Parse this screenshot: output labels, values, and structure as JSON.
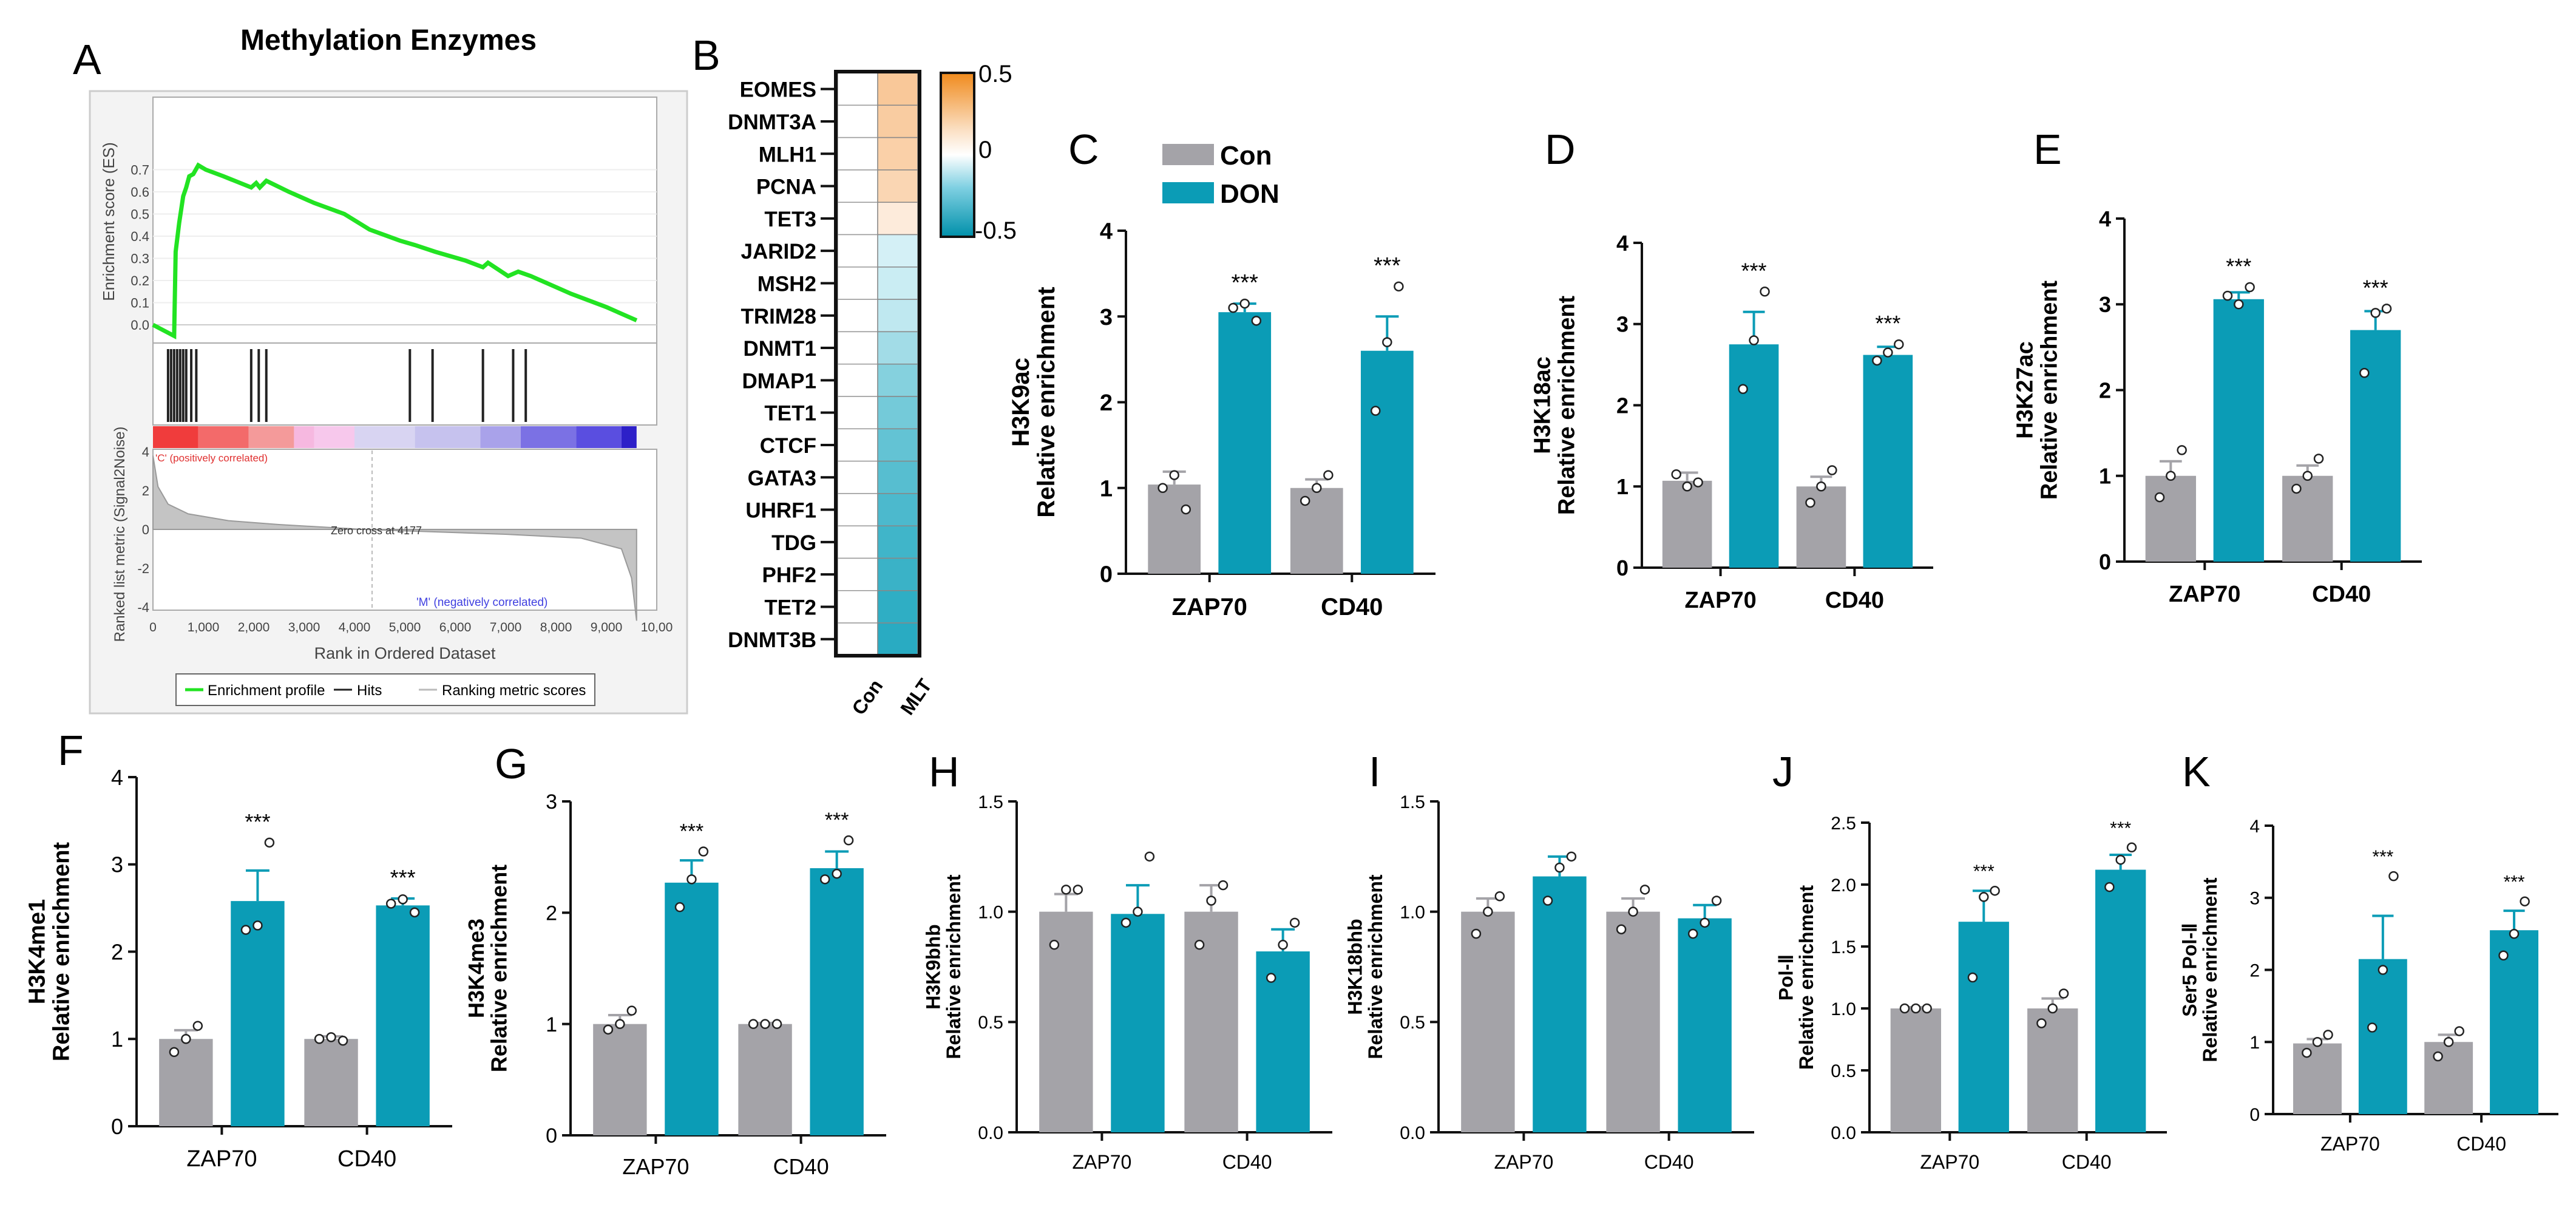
{
  "colors": {
    "con": "#a4a3a8",
    "don": "#0b9cb6",
    "gsea_line": "#22e322",
    "axis": "#111111"
  },
  "panel_letters": {
    "A": "A",
    "B": "B",
    "C": "C",
    "D": "D",
    "E": "E",
    "F": "F",
    "G": "G",
    "H": "H",
    "I": "I",
    "J": "J",
    "K": "K"
  },
  "legend": {
    "con": "Con",
    "don": "DON"
  },
  "gsea": {
    "title": "Methylation Enzymes",
    "es_label": "Enrichment score (ES)",
    "rank_label": "Ranked list metric (Signal2Noise)",
    "xlabel": "Rank in Ordered Dataset",
    "pos_note": "'C' (positively correlated)",
    "neg_note": "'M' (negatively correlated)",
    "zero_cross": "Zero cross at 4177",
    "es_ticks": [
      "0.7",
      "0.6",
      "0.5",
      "0.4",
      "0.3",
      "0.2",
      "0.1",
      "0.0"
    ],
    "rank_ticks": [
      "4",
      "2",
      "0",
      "-2",
      "-4"
    ],
    "x_ticks": [
      "0",
      "1,000",
      "2,000",
      "3,000",
      "4,000",
      "5,000",
      "6,000",
      "7,000",
      "8,000",
      "9,000",
      "10,00"
    ],
    "legend_items": [
      "Enrichment profile",
      "Hits",
      "Ranking metric scores"
    ],
    "es_points": [
      [
        0,
        0.0
      ],
      [
        420,
        -0.05
      ],
      [
        450,
        0.33
      ],
      [
        520,
        0.46
      ],
      [
        600,
        0.58
      ],
      [
        660,
        0.62
      ],
      [
        720,
        0.67
      ],
      [
        800,
        0.68
      ],
      [
        900,
        0.72
      ],
      [
        1050,
        0.7
      ],
      [
        1400,
        0.67
      ],
      [
        1950,
        0.62
      ],
      [
        2050,
        0.64
      ],
      [
        2120,
        0.62
      ],
      [
        2250,
        0.65
      ],
      [
        2700,
        0.6
      ],
      [
        3200,
        0.55
      ],
      [
        3800,
        0.5
      ],
      [
        4300,
        0.43
      ],
      [
        4900,
        0.38
      ],
      [
        5200,
        0.36
      ],
      [
        5600,
        0.33
      ],
      [
        6200,
        0.29
      ],
      [
        6550,
        0.26
      ],
      [
        6650,
        0.28
      ],
      [
        7050,
        0.22
      ],
      [
        7250,
        0.24
      ],
      [
        7500,
        0.22
      ],
      [
        8300,
        0.14
      ],
      [
        9000,
        0.08
      ],
      [
        9600,
        0.02
      ]
    ],
    "hits": [
      300,
      360,
      420,
      480,
      540,
      600,
      660,
      760,
      860,
      1950,
      2100,
      2250,
      5100,
      5550,
      6550,
      7150,
      7400
    ]
  },
  "heatmap": {
    "genes": [
      "EOMES",
      "DNMT3A",
      "MLH1",
      "PCNA",
      "TET3",
      "JARID2",
      "MSH2",
      "TRIM28",
      "DNMT1",
      "DMAP1",
      "TET1",
      "CTCF",
      "GATA3",
      "UHRF1",
      "TDG",
      "PHF2",
      "TET2",
      "DNMT3B"
    ],
    "columns": [
      "Con",
      "MLT"
    ],
    "mlt_values": [
      0.28,
      0.26,
      0.24,
      0.21,
      0.1,
      -0.15,
      -0.18,
      -0.2,
      -0.25,
      -0.3,
      -0.33,
      -0.36,
      -0.38,
      -0.4,
      -0.42,
      -0.43,
      -0.45,
      -0.46
    ],
    "colorbar_ticks": [
      "0.5",
      "0",
      "-0.5"
    ],
    "colorbar_colors": [
      "#f08a1c",
      "#fbe0c4",
      "#ffffff",
      "#7fd0e2",
      "#0090aa"
    ]
  },
  "chart_data": [
    {
      "id": "C",
      "type": "bar",
      "ylabel_top": "H3K9ac",
      "ylabel": "Relative enrichment",
      "categories": [
        "ZAP70",
        "CD40"
      ],
      "ylim": [
        0,
        4
      ],
      "yticks": [
        "0",
        "1",
        "2",
        "3",
        "4"
      ],
      "bold_ticks": true,
      "series": [
        {
          "name": "Con",
          "values": [
            1.04,
            1.0
          ],
          "err": [
            0.15,
            0.1
          ],
          "points": [
            [
              1.0,
              1.15,
              0.75
            ],
            [
              0.85,
              1.0,
              1.15
            ]
          ]
        },
        {
          "name": "DON",
          "values": [
            3.05,
            2.6
          ],
          "err": [
            0.1,
            0.4
          ],
          "points": [
            [
              3.1,
              3.15,
              2.95
            ],
            [
              1.9,
              2.7,
              3.35
            ]
          ]
        }
      ],
      "sig": [
        "***",
        "***"
      ]
    },
    {
      "id": "D",
      "type": "bar",
      "ylabel_top": "H3K18ac",
      "ylabel": "Relative enrichment",
      "categories": [
        "ZAP70",
        "CD40"
      ],
      "ylim": [
        0,
        4
      ],
      "yticks": [
        "0",
        "1",
        "2",
        "3",
        "4"
      ],
      "bold_ticks": true,
      "series": [
        {
          "name": "Con",
          "values": [
            1.07,
            1.0
          ],
          "err": [
            0.1,
            0.12
          ],
          "points": [
            [
              1.15,
              1.0,
              1.05
            ],
            [
              0.8,
              1.0,
              1.2
            ]
          ]
        },
        {
          "name": "DON",
          "values": [
            2.75,
            2.62
          ],
          "err": [
            0.4,
            0.1
          ],
          "points": [
            [
              2.2,
              2.8,
              3.4
            ],
            [
              2.55,
              2.65,
              2.75
            ]
          ]
        }
      ],
      "sig": [
        "***",
        "***"
      ]
    },
    {
      "id": "E",
      "type": "bar",
      "ylabel_top": "H3K27ac",
      "ylabel": "Relative enrichment",
      "categories": [
        "ZAP70",
        "CD40"
      ],
      "ylim": [
        0,
        4
      ],
      "yticks": [
        "0",
        "1",
        "2",
        "3",
        "4"
      ],
      "bold_ticks": true,
      "series": [
        {
          "name": "Con",
          "values": [
            1.0,
            1.0
          ],
          "err": [
            0.17,
            0.12
          ],
          "points": [
            [
              0.75,
              1.0,
              1.3
            ],
            [
              0.85,
              1.0,
              1.2
            ]
          ]
        },
        {
          "name": "DON",
          "values": [
            3.06,
            2.7
          ],
          "err": [
            0.08,
            0.22
          ],
          "points": [
            [
              3.1,
              3.0,
              3.2
            ],
            [
              2.2,
              2.9,
              2.95
            ]
          ]
        }
      ],
      "sig": [
        "***",
        "***"
      ]
    },
    {
      "id": "F",
      "type": "bar",
      "ylabel_top": "H3K4me1",
      "ylabel": "Relative enrichment",
      "categories": [
        "ZAP70",
        "CD40"
      ],
      "ylim": [
        0,
        4
      ],
      "yticks": [
        "0",
        "1",
        "2",
        "3",
        "4"
      ],
      "bold_ticks": false,
      "series": [
        {
          "name": "Con",
          "values": [
            1.0,
            1.0
          ],
          "err": [
            0.1,
            0.03
          ],
          "points": [
            [
              0.85,
              1.0,
              1.15
            ],
            [
              1.0,
              1.02,
              0.98
            ]
          ]
        },
        {
          "name": "DON",
          "values": [
            2.58,
            2.53
          ],
          "err": [
            0.35,
            0.08
          ],
          "points": [
            [
              2.25,
              2.3,
              3.25
            ],
            [
              2.55,
              2.6,
              2.45
            ]
          ]
        }
      ],
      "sig": [
        "***",
        "***"
      ]
    },
    {
      "id": "G",
      "type": "bar",
      "ylabel_top": "H3K4me3",
      "ylabel": "Relative enrichment",
      "categories": [
        "ZAP70",
        "CD40"
      ],
      "ylim": [
        0,
        3
      ],
      "yticks": [
        "0",
        "1",
        "2",
        "3"
      ],
      "bold_ticks": false,
      "series": [
        {
          "name": "Con",
          "values": [
            1.0,
            1.0
          ],
          "err": [
            0.08,
            0.01
          ],
          "points": [
            [
              0.95,
              1.0,
              1.12
            ],
            [
              1.0,
              1.0,
              1.0
            ]
          ]
        },
        {
          "name": "DON",
          "values": [
            2.27,
            2.4
          ],
          "err": [
            0.2,
            0.15
          ],
          "points": [
            [
              2.05,
              2.3,
              2.55
            ],
            [
              2.3,
              2.35,
              2.65
            ]
          ]
        }
      ],
      "sig": [
        "***",
        "***"
      ]
    },
    {
      "id": "H",
      "type": "bar",
      "ylabel_top": "H3K9bhb",
      "ylabel": "Relative enrichment",
      "categories": [
        "ZAP70",
        "CD40"
      ],
      "ylim": [
        0,
        1.5
      ],
      "yticks": [
        "0.0",
        "0.5",
        "1.0",
        "1.5"
      ],
      "bold_ticks": false,
      "series": [
        {
          "name": "Con",
          "values": [
            1.0,
            1.0
          ],
          "err": [
            0.08,
            0.12
          ],
          "points": [
            [
              0.85,
              1.1,
              1.1
            ],
            [
              0.85,
              1.05,
              1.12
            ]
          ]
        },
        {
          "name": "DON",
          "values": [
            0.99,
            0.82
          ],
          "err": [
            0.13,
            0.1
          ],
          "points": [
            [
              0.95,
              1.0,
              1.25
            ],
            [
              0.7,
              0.85,
              0.95
            ]
          ]
        }
      ],
      "sig": [
        "",
        ""
      ]
    },
    {
      "id": "I",
      "type": "bar",
      "ylabel_top": "H3K18bhb",
      "ylabel": "Relative enrichment",
      "categories": [
        "ZAP70",
        "CD40"
      ],
      "ylim": [
        0,
        1.5
      ],
      "yticks": [
        "0.0",
        "0.5",
        "1.0",
        "1.5"
      ],
      "bold_ticks": false,
      "series": [
        {
          "name": "Con",
          "values": [
            1.0,
            1.0
          ],
          "err": [
            0.06,
            0.06
          ],
          "points": [
            [
              0.9,
              1.0,
              1.07
            ],
            [
              0.92,
              1.0,
              1.1
            ]
          ]
        },
        {
          "name": "DON",
          "values": [
            1.16,
            0.97
          ],
          "err": [
            0.09,
            0.06
          ],
          "points": [
            [
              1.05,
              1.2,
              1.25
            ],
            [
              0.9,
              0.95,
              1.05
            ]
          ]
        }
      ],
      "sig": [
        "",
        ""
      ]
    },
    {
      "id": "J",
      "type": "bar",
      "ylabel_top": "Pol-Ⅱ",
      "ylabel": "Relative enrichment",
      "categories": [
        "ZAP70",
        "CD40"
      ],
      "ylim": [
        0,
        2.5
      ],
      "yticks": [
        "0.0",
        "0.5",
        "1.0",
        "1.5",
        "2.0",
        "2.5"
      ],
      "bold_ticks": false,
      "series": [
        {
          "name": "Con",
          "values": [
            1.0,
            1.0
          ],
          "err": [
            0.01,
            0.08
          ],
          "points": [
            [
              1.0,
              1.0,
              1.0
            ],
            [
              0.88,
              1.0,
              1.12
            ]
          ]
        },
        {
          "name": "DON",
          "values": [
            1.7,
            2.12
          ],
          "err": [
            0.25,
            0.12
          ],
          "points": [
            [
              1.25,
              1.9,
              1.95
            ],
            [
              1.98,
              2.2,
              2.3
            ]
          ]
        }
      ],
      "sig": [
        "***",
        "***"
      ]
    },
    {
      "id": "K",
      "type": "bar",
      "ylabel_top": "Ser5 Pol-Ⅱ",
      "ylabel": "Relative enrichment",
      "categories": [
        "ZAP70",
        "CD40"
      ],
      "ylim": [
        0,
        4
      ],
      "yticks": [
        "0",
        "1",
        "2",
        "3",
        "4"
      ],
      "bold_ticks": false,
      "series": [
        {
          "name": "Con",
          "values": [
            0.98,
            1.0
          ],
          "err": [
            0.06,
            0.1
          ],
          "points": [
            [
              0.85,
              1.0,
              1.1
            ],
            [
              0.8,
              1.0,
              1.15
            ]
          ]
        },
        {
          "name": "DON",
          "values": [
            2.15,
            2.55
          ],
          "err": [
            0.6,
            0.27
          ],
          "points": [
            [
              1.2,
              2.0,
              3.3
            ],
            [
              2.2,
              2.5,
              2.95
            ]
          ]
        }
      ],
      "sig": [
        "***",
        "***"
      ]
    }
  ]
}
